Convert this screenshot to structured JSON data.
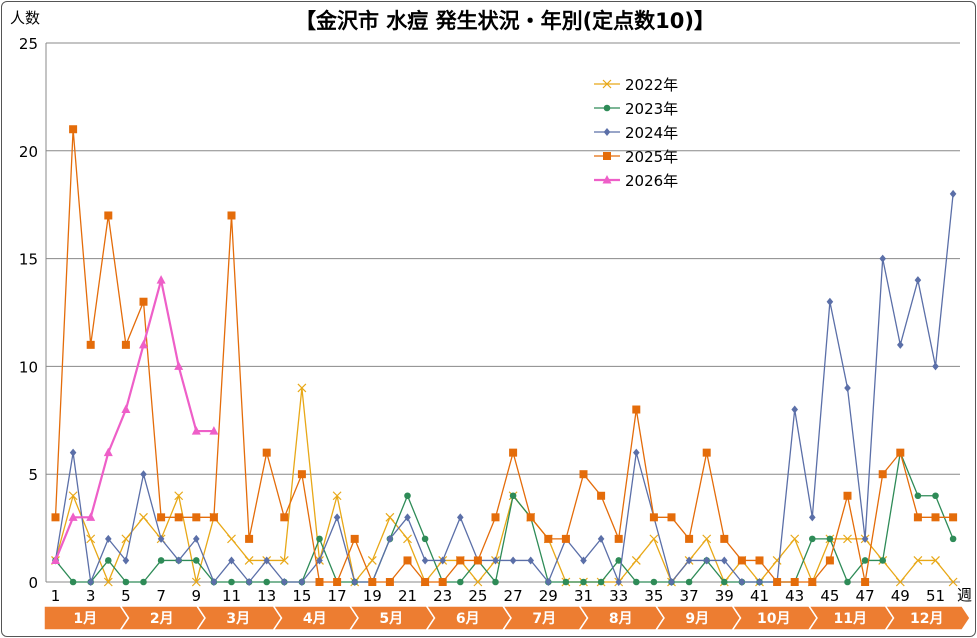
{
  "chart_data": {
    "type": "line",
    "title": "【金沢市 水痘 発生状況・年別(定点数10)】",
    "ylabel": "人数",
    "xlabel": "週",
    "ylim": [
      0,
      25
    ],
    "yticks": [
      0,
      5,
      10,
      15,
      20,
      25
    ],
    "xlim": [
      1,
      52
    ],
    "xticks": [
      1,
      3,
      5,
      7,
      9,
      11,
      13,
      15,
      17,
      19,
      21,
      23,
      25,
      27,
      29,
      31,
      33,
      35,
      37,
      39,
      41,
      43,
      45,
      47,
      49,
      51
    ],
    "grid": "horizontal",
    "legend_position": "top-right",
    "months": [
      "1月",
      "2月",
      "3月",
      "4月",
      "5月",
      "6月",
      "7月",
      "8月",
      "9月",
      "10月",
      "11月",
      "12月"
    ],
    "series": [
      {
        "name": "2022年",
        "color": "#E8A817",
        "marker": "x",
        "values": [
          1,
          4,
          2,
          0,
          2,
          3,
          2,
          4,
          0,
          3,
          2,
          1,
          1,
          1,
          9,
          1,
          4,
          0,
          1,
          3,
          2,
          0,
          1,
          1,
          0,
          1,
          4,
          3,
          2,
          0,
          0,
          0,
          0,
          1,
          2,
          0,
          1,
          2,
          0,
          1,
          0,
          1,
          2,
          0,
          2,
          2,
          2,
          1,
          0,
          1,
          1,
          0
        ]
      },
      {
        "name": "2023年",
        "color": "#2E8B57",
        "marker": "circle",
        "values": [
          1,
          0,
          0,
          1,
          0,
          0,
          1,
          1,
          1,
          0,
          0,
          0,
          0,
          0,
          0,
          2,
          0,
          0,
          0,
          2,
          4,
          2,
          0,
          0,
          1,
          0,
          4,
          3,
          0,
          0,
          0,
          0,
          1,
          0,
          0,
          0,
          0,
          1,
          0,
          0,
          0,
          0,
          0,
          2,
          2,
          0,
          1,
          1,
          6,
          4,
          4,
          2
        ]
      },
      {
        "name": "2024年",
        "color": "#5B6FA8",
        "marker": "diamond",
        "values": [
          1,
          6,
          0,
          2,
          1,
          5,
          2,
          1,
          2,
          0,
          1,
          0,
          1,
          0,
          0,
          1,
          3,
          0,
          0,
          2,
          3,
          1,
          1,
          3,
          1,
          1,
          1,
          1,
          0,
          2,
          1,
          2,
          0,
          6,
          3,
          0,
          1,
          1,
          1,
          0,
          0,
          0,
          8,
          3,
          13,
          9,
          2,
          15,
          11,
          14,
          10,
          18
        ]
      },
      {
        "name": "2025年",
        "color": "#E46C0A",
        "marker": "square",
        "values": [
          3,
          21,
          11,
          17,
          11,
          13,
          3,
          3,
          3,
          3,
          17,
          2,
          6,
          3,
          5,
          0,
          0,
          2,
          0,
          0,
          1,
          0,
          0,
          1,
          1,
          3,
          6,
          3,
          2,
          2,
          5,
          4,
          2,
          8,
          3,
          3,
          2,
          6,
          2,
          1,
          1,
          0,
          0,
          0,
          1,
          4,
          0,
          5,
          6,
          3,
          3,
          3
        ]
      },
      {
        "name": "2026年",
        "color": "#EE5FC8",
        "marker": "triangle",
        "values": [
          1,
          3,
          3,
          6,
          8,
          11,
          14,
          10,
          7,
          7
        ]
      }
    ]
  }
}
